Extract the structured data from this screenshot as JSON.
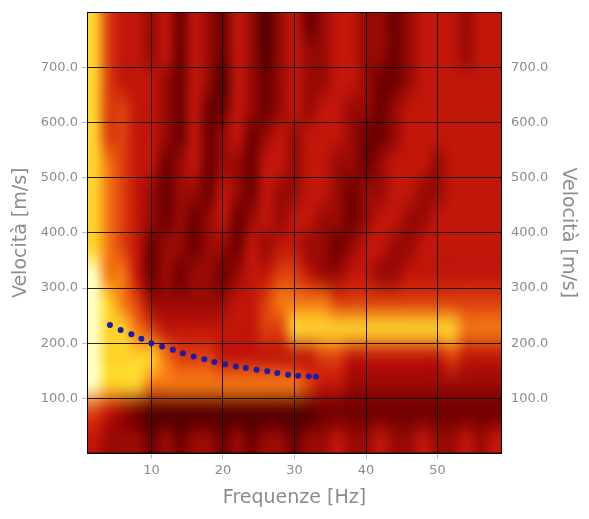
{
  "chart_data": {
    "type": "heatmap",
    "xlabel": "Frequenze [Hz]",
    "ylabel": "Velocità [m/s]",
    "y2label": "Velocità [m/s]",
    "xlim": [
      1,
      59
    ],
    "xticks": [
      10,
      20,
      30,
      40,
      50
    ],
    "ylim": [
      0,
      800
    ],
    "yticks": [
      {
        "value": 100,
        "label": "100.0"
      },
      {
        "value": 200,
        "label": "200.0"
      },
      {
        "value": 300,
        "label": "300.0"
      },
      {
        "value": 400,
        "label": "400.0"
      },
      {
        "value": 500,
        "label": "500.0"
      },
      {
        "value": 600,
        "label": "600.0"
      },
      {
        "value": 700,
        "label": "700.0"
      }
    ],
    "y2lim": [
      0,
      800
    ],
    "y2ticks": [
      {
        "value": 100,
        "label": "100.0"
      },
      {
        "value": 200,
        "label": "200.0"
      },
      {
        "value": 300,
        "label": "300.0"
      },
      {
        "value": 400,
        "label": "400.0"
      },
      {
        "value": 500,
        "label": "500.0"
      },
      {
        "value": 600,
        "label": "600.0"
      },
      {
        "value": 700,
        "label": "700.0"
      }
    ],
    "grid": true,
    "heatmap": {
      "x_edges": [
        1,
        3,
        5,
        7,
        9,
        11,
        13,
        15,
        17,
        19,
        21,
        23,
        25,
        27,
        29,
        31,
        33,
        35,
        37,
        39,
        41,
        43,
        45,
        47,
        49,
        51,
        53,
        55,
        57,
        59
      ],
      "y_edges": [
        0,
        50,
        100,
        150,
        200,
        250,
        300,
        350,
        400,
        450,
        500,
        550,
        600,
        650,
        700,
        750,
        800
      ],
      "zlim": [
        0,
        9
      ],
      "cells": [
        [
          5,
          4,
          4,
          4,
          3,
          4,
          3,
          4,
          4,
          3,
          4,
          3,
          4,
          4,
          3,
          4,
          4,
          5,
          4,
          4,
          5,
          4,
          4,
          5,
          4,
          4,
          5,
          4,
          5
        ],
        [
          6,
          5,
          4,
          3,
          2,
          2,
          2,
          2,
          2,
          2,
          2,
          2,
          2,
          2,
          2,
          2,
          3,
          3,
          3,
          3,
          3,
          3,
          3,
          3,
          3,
          3,
          3,
          3,
          3
        ],
        [
          9,
          8,
          8,
          8,
          7,
          7,
          7,
          7,
          7,
          7,
          7,
          7,
          7,
          7,
          7,
          6,
          5,
          5,
          4,
          4,
          4,
          4,
          4,
          4,
          4,
          4,
          4,
          4,
          4
        ],
        [
          9,
          8,
          8,
          8,
          8,
          7,
          6,
          6,
          6,
          5,
          5,
          5,
          5,
          5,
          5,
          5,
          6,
          6,
          5,
          5,
          5,
          5,
          5,
          5,
          5,
          6,
          5,
          5,
          5
        ],
        [
          9,
          8,
          8,
          7,
          6,
          5,
          5,
          5,
          5,
          5,
          5,
          5,
          6,
          6,
          8,
          8,
          8,
          8,
          8,
          8,
          8,
          8,
          8,
          8,
          8,
          8,
          7,
          7,
          7
        ],
        [
          9,
          8,
          7,
          6,
          4,
          4,
          4,
          4,
          4,
          4,
          5,
          5,
          6,
          7,
          7,
          7,
          7,
          6,
          6,
          6,
          6,
          6,
          6,
          6,
          6,
          6,
          6,
          6,
          6
        ],
        [
          9,
          7,
          7,
          5,
          3,
          4,
          3,
          4,
          4,
          3,
          4,
          5,
          5,
          6,
          6,
          5,
          4,
          4,
          5,
          5,
          4,
          4,
          5,
          5,
          5,
          5,
          5,
          5,
          5
        ],
        [
          8,
          7,
          6,
          5,
          3,
          4,
          4,
          3,
          4,
          4,
          3,
          5,
          4,
          5,
          5,
          4,
          4,
          3,
          4,
          5,
          5,
          4,
          4,
          5,
          5,
          5,
          5,
          5,
          5
        ],
        [
          8,
          7,
          6,
          5,
          4,
          3,
          4,
          3,
          4,
          5,
          3,
          4,
          5,
          4,
          5,
          5,
          4,
          4,
          3,
          4,
          5,
          5,
          4,
          4,
          5,
          5,
          5,
          5,
          5
        ],
        [
          8,
          7,
          6,
          5,
          4,
          3,
          4,
          4,
          3,
          5,
          4,
          3,
          5,
          4,
          4,
          5,
          5,
          4,
          3,
          4,
          4,
          5,
          5,
          4,
          4,
          5,
          5,
          5,
          5
        ],
        [
          8,
          7,
          6,
          5,
          5,
          3,
          4,
          5,
          3,
          4,
          4,
          3,
          5,
          5,
          4,
          5,
          5,
          4,
          4,
          3,
          4,
          5,
          5,
          5,
          4,
          5,
          5,
          5,
          5
        ],
        [
          8,
          6,
          6,
          5,
          5,
          4,
          3,
          5,
          3,
          4,
          5,
          3,
          4,
          5,
          4,
          5,
          5,
          5,
          4,
          3,
          3,
          4,
          5,
          5,
          5,
          5,
          5,
          5,
          5
        ],
        [
          8,
          6,
          6,
          5,
          5,
          4,
          3,
          5,
          3,
          3,
          5,
          4,
          3,
          4,
          5,
          4,
          5,
          5,
          4,
          4,
          3,
          4,
          5,
          5,
          5,
          5,
          5,
          5,
          5
        ],
        [
          8,
          6,
          5,
          5,
          5,
          4,
          3,
          5,
          4,
          2,
          5,
          4,
          3,
          4,
          5,
          4,
          4,
          5,
          5,
          4,
          3,
          3,
          4,
          5,
          5,
          5,
          5,
          5,
          5
        ],
        [
          8,
          6,
          5,
          5,
          4,
          5,
          3,
          5,
          4,
          3,
          5,
          4,
          2,
          4,
          5,
          4,
          4,
          5,
          5,
          4,
          4,
          3,
          4,
          5,
          5,
          5,
          4,
          5,
          5
        ],
        [
          8,
          6,
          5,
          5,
          4,
          5,
          3,
          5,
          4,
          3,
          5,
          4,
          2,
          4,
          5,
          3,
          4,
          5,
          5,
          4,
          4,
          3,
          4,
          5,
          5,
          5,
          4,
          5,
          5
        ]
      ]
    },
    "series": [
      {
        "type": "scatter",
        "color": "#1c1ca8",
        "marker": "circle",
        "x": [
          4.2,
          5.7,
          7.2,
          8.6,
          10,
          11.5,
          13,
          14.4,
          15.9,
          17.4,
          18.8,
          20.3,
          21.8,
          23.2,
          24.7,
          26.2,
          27.6,
          29.1,
          30.5,
          32,
          33
        ],
        "values": [
          233,
          224,
          216,
          208,
          200,
          194,
          188,
          182,
          176,
          171,
          166,
          162,
          158,
          155,
          152,
          149,
          146,
          143,
          141,
          140,
          139
        ]
      }
    ]
  }
}
